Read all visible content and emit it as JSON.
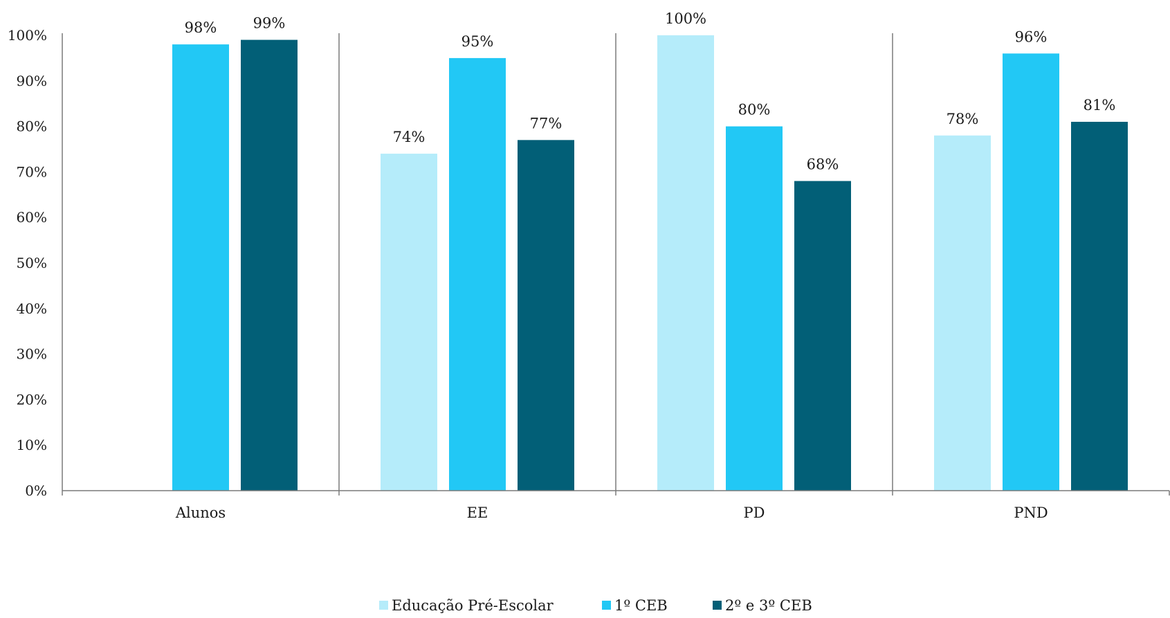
{
  "chart_data": {
    "type": "bar",
    "categories": [
      "Alunos",
      "EE",
      "PD",
      "PND"
    ],
    "series": [
      {
        "name": "Educação Pré-Escolar",
        "color": "#b5ecfa",
        "values": [
          null,
          74,
          100,
          78
        ]
      },
      {
        "name": "1º CEB",
        "color": "#22c8f5",
        "values": [
          98,
          95,
          80,
          96
        ]
      },
      {
        "name": "2º e 3º CEB",
        "color": "#025f77",
        "values": [
          99,
          77,
          68,
          81
        ]
      }
    ],
    "ylim": [
      0,
      100
    ],
    "yticks": [
      0,
      10,
      20,
      30,
      40,
      50,
      60,
      70,
      80,
      90,
      100
    ],
    "ytick_labels": [
      "0%",
      "10%",
      "20%",
      "30%",
      "40%",
      "50%",
      "60%",
      "70%",
      "80%",
      "90%",
      "100%"
    ],
    "value_suffix": "%",
    "legend_position": "bottom",
    "grid": false,
    "title": "",
    "xlabel": "",
    "ylabel": ""
  }
}
